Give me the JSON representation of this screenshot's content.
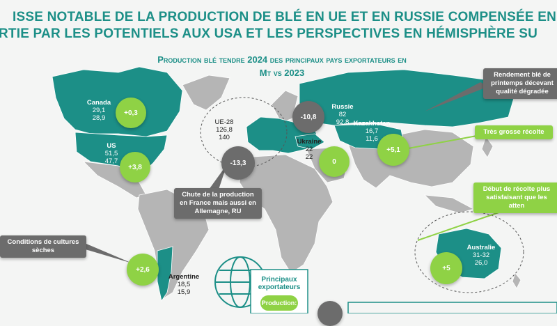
{
  "headline": {
    "line1": "ISSE NOTABLE DE LA PRODUCTION DE BLÉ EN UE ET EN RUSSIE COMPENSÉE EN",
    "line2": "RTIE PAR LES POTENTIELS AUX USA ET LES PERSPECTIVES EN HÉMISPHÈRE SU"
  },
  "subtitle": {
    "line1": "Production blé tendre 2024 des principaux pays exportateurs en",
    "line2": "Mt vs 2023"
  },
  "countries": {
    "canada": {
      "name": "Canada",
      "v2024": "29,1",
      "v2023": "28,9",
      "delta": "+0,3"
    },
    "us": {
      "name": "US",
      "v2024": "51,5",
      "v2023": "47,7",
      "delta": "+3,8"
    },
    "eu": {
      "name": "UE-28",
      "v2024": "126,8",
      "v2023": "140",
      "delta": "-13,3"
    },
    "russia": {
      "name": "Russie",
      "v2024": "82",
      "v2023": "92,8",
      "delta": "-10,8"
    },
    "kazakhstan": {
      "name": "Kazakhstan",
      "v2024": "16,7",
      "v2023": "11,6",
      "delta": "+5,1"
    },
    "ukraine": {
      "name": "Ukraine",
      "v2024": "22",
      "v2023": "22",
      "delta": "0"
    },
    "argentina": {
      "name": "Argentine",
      "v2024": "18,5",
      "v2023": "15,9",
      "delta": "+2,6"
    },
    "australia": {
      "name": "Australie",
      "v2024": "31-32",
      "v2023": "26,0",
      "delta": "+5"
    }
  },
  "callouts": {
    "russia_note": [
      "Rendement blé de",
      "printemps décevant",
      "qualité dégradée"
    ],
    "kazakh_note": [
      "Très grosse récolte"
    ],
    "australia_note": [
      "Début de récolte plus",
      "satisfaisant que les atten"
    ],
    "france_note": [
      "Chute de la production",
      "en France mais aussi en",
      "Allemagne, RU"
    ],
    "argentina_note": [
      "Conditions de cultures",
      "sèches"
    ]
  },
  "legend": {
    "title1": "Principaux",
    "title2": "exportateurs",
    "item": "Production:"
  },
  "colors": {
    "teal": "#1c8f87",
    "green": "#8fd245",
    "grey": "#6c6c6c",
    "land": "#b5b5b5"
  }
}
